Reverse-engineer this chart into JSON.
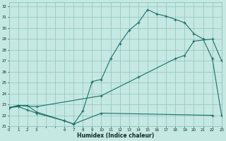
{
  "xlabel": "Humidex (Indice chaleur)",
  "bg_color": "#c5e8e2",
  "grid_color": "#8ec4bc",
  "line_color": "#1a7068",
  "xlim": [
    0,
    23
  ],
  "ylim": [
    21,
    32.4
  ],
  "xticks": [
    0,
    1,
    2,
    3,
    6,
    7,
    8,
    9,
    10,
    11,
    12,
    13,
    14,
    15,
    16,
    17,
    18,
    19,
    20,
    21,
    22,
    23
  ],
  "yticks": [
    21,
    22,
    23,
    24,
    25,
    26,
    27,
    28,
    29,
    30,
    31,
    32
  ],
  "line1_x": [
    0,
    1,
    2,
    3,
    6,
    7,
    8,
    9,
    10,
    11,
    12,
    13,
    14,
    15,
    16,
    17,
    18,
    19,
    20,
    21,
    22,
    23
  ],
  "line1_y": [
    22.7,
    22.9,
    22.9,
    22.3,
    21.5,
    21.2,
    22.4,
    25.1,
    25.3,
    27.2,
    28.6,
    29.8,
    30.5,
    31.7,
    31.3,
    31.1,
    30.8,
    30.5,
    29.5,
    29.0,
    27.2,
    22.0
  ],
  "line2_x": [
    0,
    1,
    2,
    3,
    6,
    7,
    10,
    22
  ],
  "line2_y": [
    22.7,
    22.8,
    22.5,
    22.2,
    21.5,
    21.2,
    22.2,
    22.0
  ],
  "line3_x": [
    0,
    1,
    3,
    10,
    14,
    18,
    19,
    20,
    22,
    23
  ],
  "line3_y": [
    22.7,
    22.9,
    22.8,
    23.8,
    25.5,
    27.2,
    27.5,
    28.8,
    29.0,
    27.0
  ]
}
